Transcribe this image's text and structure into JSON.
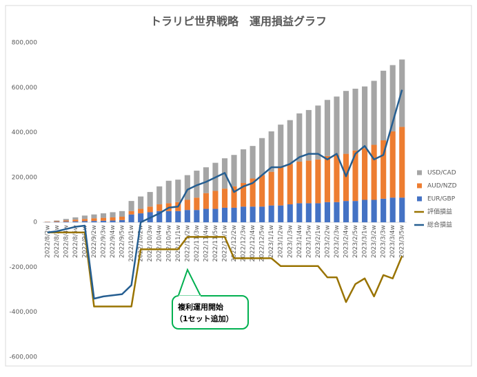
{
  "chart_data": {
    "type": "bar_line",
    "title": "トラリピ世界戦略　運用損益グラフ",
    "annotation": [
      "複利運用開始",
      "（1セット追加）"
    ],
    "categories": [
      "2022/8/2w",
      "2022/8/3w",
      "2022/8/4w",
      "2022/8/5w",
      "2022/9/1w",
      "2022/9/2w",
      "2022/9/3w",
      "2022/9/4w",
      "2022/9/5w",
      "2022/10/1w",
      "2022/10/2w",
      "2022/10/3w",
      "2022/10/4w",
      "2022/10/5w",
      "2022/11/1w",
      "2022/11/2w",
      "2022/11/3w",
      "2022/11/4w",
      "2022/11/5w",
      "2022/12/1w",
      "2022/12/2w",
      "2022/12/3w",
      "2022/12/4w",
      "2022/12/5w",
      "2023/1/1w",
      "2023/1/2w",
      "2023/1/3w",
      "2023/1/4w",
      "2023/1/5w",
      "2023/2/1w",
      "2023/2/2w",
      "2023/2/3w",
      "2023/2/4w",
      "2023/2/5w",
      "2023/3/1w",
      "2023/3/2w",
      "2023/3/3w",
      "2023/3/4w",
      "2023/3/5w"
    ],
    "series": [
      {
        "name": "EUR/GBP",
        "color": "#4472c4",
        "kind": "bar",
        "values": [
          1000,
          2000,
          3000,
          4000,
          5000,
          6000,
          7000,
          8000,
          10000,
          35000,
          40000,
          45000,
          50000,
          50000,
          50000,
          55000,
          55000,
          60000,
          60000,
          65000,
          65000,
          70000,
          70000,
          70000,
          75000,
          75000,
          80000,
          85000,
          85000,
          85000,
          90000,
          90000,
          95000,
          95000,
          100000,
          100000,
          105000,
          110000,
          110000
        ]
      },
      {
        "name": "AUD/NZD",
        "color": "#ed7d31",
        "kind": "bar",
        "values": [
          1000,
          3000,
          5000,
          8000,
          10000,
          12000,
          13000,
          14000,
          15000,
          15000,
          20000,
          25000,
          30000,
          35000,
          40000,
          45000,
          55000,
          70000,
          80000,
          85000,
          95000,
          105000,
          125000,
          140000,
          150000,
          170000,
          180000,
          185000,
          190000,
          195000,
          205000,
          210000,
          210000,
          225000,
          230000,
          245000,
          260000,
          295000,
          315000
        ]
      },
      {
        "name": "USD/CAD",
        "color": "#a5a5a5",
        "kind": "bar",
        "values": [
          1000,
          3000,
          7000,
          10000,
          15000,
          17000,
          20000,
          23000,
          25000,
          45000,
          55000,
          65000,
          80000,
          100000,
          100000,
          110000,
          120000,
          115000,
          125000,
          135000,
          140000,
          150000,
          145000,
          165000,
          180000,
          190000,
          195000,
          215000,
          225000,
          240000,
          250000,
          260000,
          280000,
          275000,
          275000,
          285000,
          310000,
          295000,
          300000
        ]
      },
      {
        "name": "評価損益",
        "color": "#997300",
        "kind": "line",
        "values": [
          -45000,
          -45000,
          -45000,
          -45000,
          -45000,
          -375000,
          -375000,
          -375000,
          -375000,
          -375000,
          -120000,
          -120000,
          -120000,
          -120000,
          -120000,
          -65000,
          -65000,
          -65000,
          -65000,
          -65000,
          -160000,
          -160000,
          -160000,
          -160000,
          -160000,
          -195000,
          -195000,
          -195000,
          -195000,
          -195000,
          -245000,
          -245000,
          -355000,
          -275000,
          -250000,
          -330000,
          -235000,
          -250000,
          -150000
        ]
      },
      {
        "name": "総合損益",
        "color": "#255e91",
        "kind": "line",
        "values": [
          -45000,
          -40000,
          -30000,
          -20000,
          -15000,
          -340000,
          -330000,
          -325000,
          -320000,
          -280000,
          0,
          20000,
          40000,
          65000,
          70000,
          145000,
          165000,
          180000,
          200000,
          220000,
          135000,
          160000,
          175000,
          210000,
          245000,
          245000,
          260000,
          290000,
          305000,
          305000,
          280000,
          305000,
          205000,
          305000,
          340000,
          280000,
          300000,
          445000,
          590000
        ]
      }
    ],
    "ylim": [
      -600000,
      800000
    ],
    "yticks": [
      {
        "value": -600000,
        "label": "-600,000"
      },
      {
        "value": -400000,
        "label": "-400,000"
      },
      {
        "value": -200000,
        "label": "-200,000"
      },
      0,
      {
        "value": 200000,
        "label": "200,000"
      },
      {
        "value": 400000,
        "label": "400,000"
      },
      {
        "value": 600000,
        "label": "600,000"
      },
      {
        "value": 800000,
        "label": "800,000"
      }
    ],
    "grid": false,
    "legend": "right"
  }
}
